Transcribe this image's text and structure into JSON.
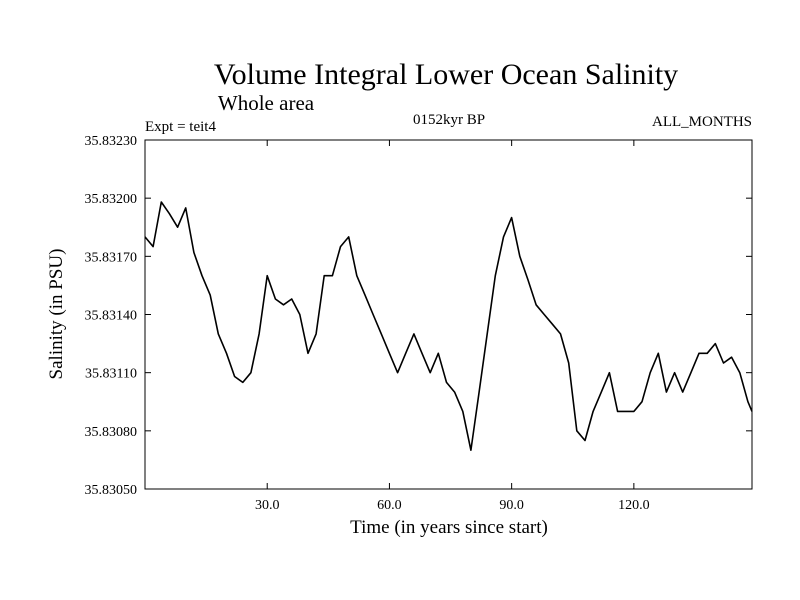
{
  "chart_data": {
    "type": "line",
    "title": "Volume Integral Lower Ocean Salinity",
    "subtitle": "Whole area",
    "left_label": "Expt = teit4",
    "center_label": "0152kyr BP",
    "right_label": "ALL_MONTHS",
    "xlabel": "Time (in years since start)",
    "ylabel": "Salinity (in PSU)",
    "xlim": [
      0,
      149
    ],
    "ylim": [
      35.8305,
      35.8323
    ],
    "x_ticks": [
      30,
      60,
      90,
      120
    ],
    "x_tick_labels": [
      "30.0",
      "60.0",
      "90.0",
      "120.0"
    ],
    "y_ticks": [
      35.8305,
      35.8308,
      35.8311,
      35.8314,
      35.8317,
      35.832,
      35.8323
    ],
    "y_tick_labels": [
      "35.83050",
      "35.83080",
      "35.83110",
      "35.83140",
      "35.83170",
      "35.83200",
      "35.83230"
    ],
    "grid": false,
    "series": [
      {
        "name": "salinity",
        "color": "#000000",
        "x": [
          0,
          2,
          4,
          6,
          8,
          10,
          12,
          14,
          16,
          18,
          20,
          22,
          24,
          26,
          28,
          30,
          32,
          34,
          36,
          38,
          40,
          42,
          44,
          46,
          48,
          50,
          52,
          54,
          56,
          58,
          60,
          62,
          64,
          66,
          68,
          70,
          72,
          74,
          76,
          78,
          80,
          82,
          84,
          86,
          88,
          90,
          92,
          94,
          96,
          98,
          100,
          102,
          104,
          106,
          108,
          110,
          112,
          114,
          116,
          118,
          120,
          122,
          124,
          126,
          128,
          130,
          132,
          134,
          136,
          138,
          140,
          142,
          144,
          146,
          148,
          149
        ],
        "y": [
          35.8318,
          35.83175,
          35.83198,
          35.83192,
          35.83185,
          35.83195,
          35.83172,
          35.8316,
          35.8315,
          35.8313,
          35.8312,
          35.83108,
          35.83105,
          35.8311,
          35.8313,
          35.8316,
          35.83148,
          35.83145,
          35.83148,
          35.8314,
          35.8312,
          35.8313,
          35.8316,
          35.8316,
          35.83175,
          35.8318,
          35.8316,
          35.8315,
          35.8314,
          35.8313,
          35.8312,
          35.8311,
          35.8312,
          35.8313,
          35.8312,
          35.8311,
          35.8312,
          35.83105,
          35.831,
          35.8309,
          35.8307,
          35.831,
          35.8313,
          35.8316,
          35.8318,
          35.8319,
          35.8317,
          35.83158,
          35.83145,
          35.8314,
          35.83135,
          35.8313,
          35.83115,
          35.8308,
          35.83075,
          35.8309,
          35.831,
          35.8311,
          35.8309,
          35.8309,
          35.8309,
          35.83095,
          35.8311,
          35.8312,
          35.831,
          35.8311,
          35.831,
          35.8311,
          35.8312,
          35.8312,
          35.83125,
          35.83115,
          35.83118,
          35.8311,
          35.83095,
          35.8309
        ]
      }
    ]
  }
}
